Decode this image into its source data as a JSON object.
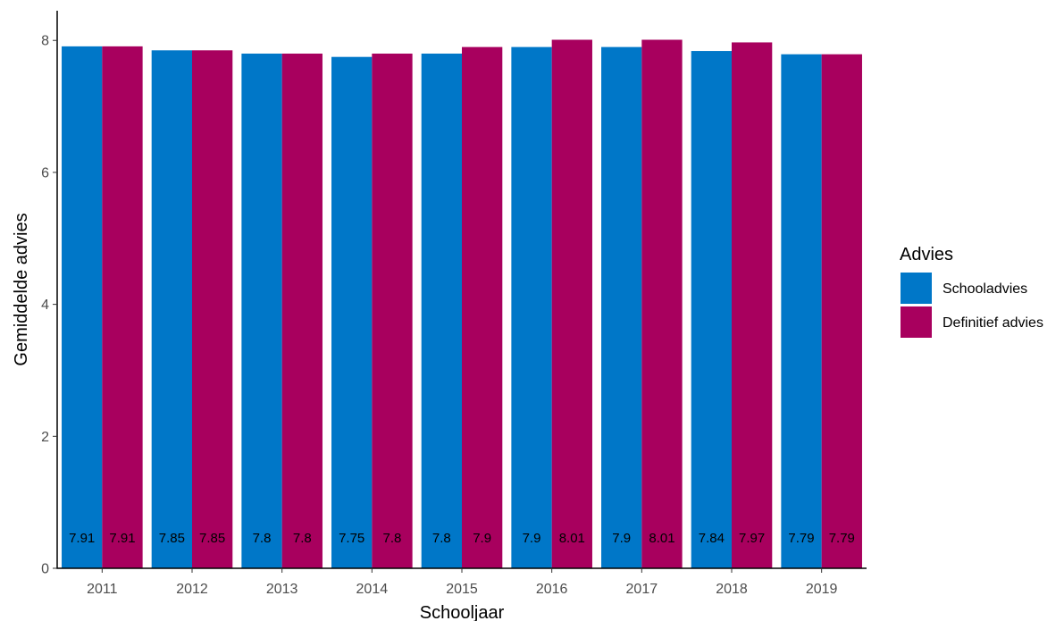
{
  "chart_data": {
    "type": "bar",
    "title": "",
    "xlabel": "Schooljaar",
    "ylabel": "Gemiddelde advies",
    "categories": [
      "2011",
      "2012",
      "2013",
      "2014",
      "2015",
      "2016",
      "2017",
      "2018",
      "2019"
    ],
    "series": [
      {
        "name": "Schooladvies",
        "color": "#0077c8",
        "values": [
          7.91,
          7.85,
          7.8,
          7.75,
          7.8,
          7.9,
          7.9,
          7.84,
          7.79
        ],
        "labels": [
          "7.91",
          "7.85",
          "7.8",
          "7.75",
          "7.8",
          "7.9",
          "7.9",
          "7.84",
          "7.79"
        ]
      },
      {
        "name": "Definitief advies",
        "color": "#a8005e",
        "values": [
          7.91,
          7.85,
          7.8,
          7.8,
          7.9,
          8.01,
          8.01,
          7.97,
          7.79
        ],
        "labels": [
          "7.91",
          "7.85",
          "7.8",
          "7.8",
          "7.9",
          "8.01",
          "8.01",
          "7.97",
          "7.79"
        ]
      }
    ],
    "ylim": [
      0,
      8.45
    ],
    "yticks": [
      0,
      2,
      4,
      6,
      8
    ],
    "ytick_labels": [
      "0",
      "2",
      "4",
      "6",
      "8"
    ],
    "grid": false,
    "legend": {
      "title": "Advies",
      "position": "right"
    }
  }
}
